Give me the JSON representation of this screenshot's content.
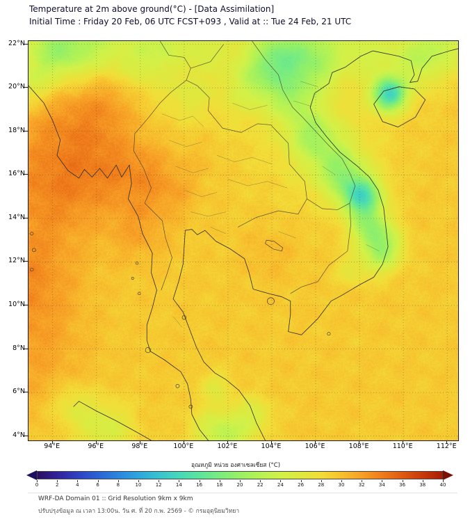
{
  "header": {
    "title": "Temperature at 2m above ground(°C) - [Data Assimilation]",
    "subtitle": "Initial Time : Friday 20 Feb, 06 UTC FCST+093 , Valid at :: Tue 24 Feb, 21 UTC"
  },
  "map": {
    "lon_range": [
      92.9,
      112.5
    ],
    "lat_range": [
      3.8,
      22.15
    ],
    "grid_step": 2,
    "lat_ticks": [
      {
        "v": 22,
        "label": "22°N"
      },
      {
        "v": 20,
        "label": "20°N"
      },
      {
        "v": 18,
        "label": "18°N"
      },
      {
        "v": 16,
        "label": "16°N"
      },
      {
        "v": 14,
        "label": "14°N"
      },
      {
        "v": 12,
        "label": "12°N"
      },
      {
        "v": 10,
        "label": "10°N"
      },
      {
        "v": 8,
        "label": "8°N"
      },
      {
        "v": 6,
        "label": "6°N"
      },
      {
        "v": 4,
        "label": "4°N"
      }
    ],
    "lon_ticks": [
      {
        "v": 94,
        "label": "94°E"
      },
      {
        "v": 96,
        "label": "96°E"
      },
      {
        "v": 98,
        "label": "98°E"
      },
      {
        "v": 100,
        "label": "100°E"
      },
      {
        "v": 102,
        "label": "102°E"
      },
      {
        "v": 104,
        "label": "104°E"
      },
      {
        "v": 106,
        "label": "106°E"
      },
      {
        "v": 108,
        "label": "108°E"
      },
      {
        "v": 110,
        "label": "110°E"
      },
      {
        "v": 112,
        "label": "112°E"
      }
    ]
  },
  "colorbar": {
    "label": "อุณหภูมิ หน่วย องศาเซลเซียส (°C)",
    "min": 0,
    "max": 40,
    "ticks": [
      0,
      2,
      4,
      6,
      8,
      10,
      12,
      14,
      16,
      18,
      20,
      22,
      24,
      26,
      28,
      30,
      32,
      34,
      36,
      38,
      40
    ],
    "left_arrow_color": "#1c1060",
    "right_arrow_color": "#7d1004",
    "stops": [
      {
        "v": 0,
        "c": "#2b0f5e"
      },
      {
        "v": 2,
        "c": "#32219c"
      },
      {
        "v": 4,
        "c": "#2f41c3"
      },
      {
        "v": 6,
        "c": "#2b63d5"
      },
      {
        "v": 8,
        "c": "#2b86dd"
      },
      {
        "v": 10,
        "c": "#2fa6dc"
      },
      {
        "v": 12,
        "c": "#38c3cf"
      },
      {
        "v": 14,
        "c": "#46d8b8"
      },
      {
        "v": 16,
        "c": "#5ce49c"
      },
      {
        "v": 18,
        "c": "#79ec7f"
      },
      {
        "v": 20,
        "c": "#98f064"
      },
      {
        "v": 22,
        "c": "#b6f253"
      },
      {
        "v": 24,
        "c": "#d2f148"
      },
      {
        "v": 26,
        "c": "#dfe83e"
      },
      {
        "v": 28,
        "c": "#f2dd38"
      },
      {
        "v": 30,
        "c": "#f7c12e"
      },
      {
        "v": 32,
        "c": "#f7a026"
      },
      {
        "v": 34,
        "c": "#ef7d1b"
      },
      {
        "v": 36,
        "c": "#e05a12"
      },
      {
        "v": 38,
        "c": "#c93a0a"
      },
      {
        "v": 40,
        "c": "#a81e04"
      }
    ]
  },
  "footer": {
    "line1": "WRF-DA Domain 01 :: Grid Resolution 9km x 9km",
    "line2": "ปรับปรุงข้อมูล ณ เวลา 13:00น. วัน ศ. ที่ 20 ก.พ. 2569 - © กรมอุตุนิยมวิทยา"
  },
  "temperature_field": {
    "base_c": 29.4,
    "noise_amp": 0.4,
    "features": [
      [
        94.6,
        18.8,
        1.7,
        3.2
      ],
      [
        95.9,
        16.6,
        1.4,
        2.6
      ],
      [
        96.7,
        19.4,
        1.1,
        2.2
      ],
      [
        98.2,
        15.9,
        1.2,
        3.0
      ],
      [
        97.9,
        13.4,
        1.0,
        2.0
      ],
      [
        95.0,
        14.9,
        1.2,
        1.6
      ],
      [
        92.9,
        13.0,
        1.8,
        2.5
      ],
      [
        93.0,
        16.0,
        1.3,
        2.0
      ],
      [
        92.9,
        10.5,
        1.6,
        2.2
      ],
      [
        93.0,
        7.5,
        1.8,
        2.0
      ],
      [
        99.7,
        15.1,
        0.7,
        1.2
      ],
      [
        103.9,
        12.4,
        0.9,
        1.0
      ],
      [
        100.8,
        16.8,
        0.8,
        0.8
      ],
      [
        94.0,
        20.5,
        0.8,
        1.2
      ],
      [
        94.3,
        21.7,
        1.1,
        -9
      ],
      [
        93.1,
        20.2,
        0.8,
        -4
      ],
      [
        96.3,
        21.9,
        0.8,
        -3
      ],
      [
        98.9,
        22.1,
        0.8,
        -3
      ],
      [
        100.9,
        21.9,
        0.8,
        -2.5
      ],
      [
        104.6,
        21.4,
        1.0,
        -8
      ],
      [
        106.3,
        21.9,
        0.8,
        -4
      ],
      [
        108.2,
        21.6,
        0.8,
        -4
      ],
      [
        110.6,
        21.4,
        1.0,
        -6
      ],
      [
        112.1,
        22.0,
        0.8,
        -4
      ],
      [
        109.35,
        19.7,
        0.55,
        -15
      ],
      [
        104.9,
        19.5,
        0.8,
        -5
      ],
      [
        105.9,
        17.8,
        0.8,
        -6
      ],
      [
        107.1,
        16.2,
        0.8,
        -7
      ],
      [
        108.1,
        15.0,
        0.65,
        -13.5
      ],
      [
        108.5,
        13.5,
        0.65,
        -8
      ],
      [
        108.9,
        12.2,
        0.6,
        -5
      ],
      [
        109.3,
        12.8,
        0.6,
        -4
      ],
      [
        107.6,
        11.6,
        0.5,
        -2.5
      ],
      [
        102.9,
        19.9,
        0.8,
        -2.5
      ],
      [
        100.2,
        19.6,
        0.7,
        -2
      ],
      [
        101.4,
        4.2,
        0.8,
        -5
      ],
      [
        102.2,
        3.9,
        0.6,
        -3
      ],
      [
        103.1,
        4.9,
        0.65,
        -4
      ],
      [
        96.4,
        4.3,
        0.9,
        -4.5
      ],
      [
        94.9,
        5.4,
        0.7,
        -3
      ],
      [
        101.4,
        6.3,
        0.5,
        -3
      ],
      [
        106.2,
        20.6,
        0.7,
        -3
      ],
      [
        103.6,
        20.8,
        0.8,
        -3
      ],
      [
        98.0,
        21.0,
        0.8,
        -2.5
      ],
      [
        103.5,
        22.5,
        3.5,
        -2
      ],
      [
        97.0,
        22.5,
        2.5,
        -2
      ],
      [
        106.6,
        17.0,
        1.8,
        -2
      ]
    ]
  }
}
